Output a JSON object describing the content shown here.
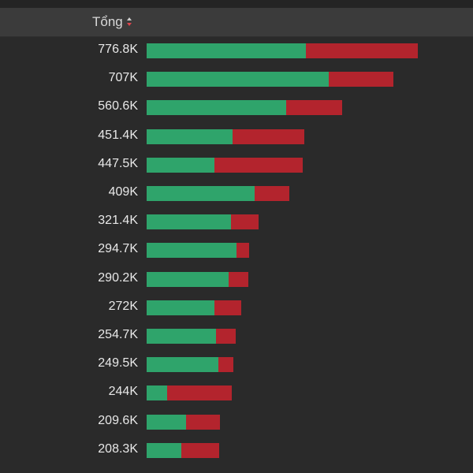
{
  "header": {
    "label": "Tổng",
    "sort_icon": "sort-descending-icon"
  },
  "colors": {
    "buy": "#2fa46b",
    "sell": "#b3242d",
    "background": "#2a2a2a",
    "header_bg": "#3b3b3b"
  },
  "rows": [
    {
      "total": "776.8K",
      "green": 0.587,
      "red": 0.413
    },
    {
      "total": "707K",
      "green": 0.738,
      "red": 0.262
    },
    {
      "total": "560.6K",
      "green": 0.712,
      "red": 0.288
    },
    {
      "total": "451.4K",
      "green": 0.544,
      "red": 0.456
    },
    {
      "total": "447.5K",
      "green": 0.432,
      "red": 0.568
    },
    {
      "total": "409K",
      "green": 0.754,
      "red": 0.246
    },
    {
      "total": "321.4K",
      "green": 0.754,
      "red": 0.246
    },
    {
      "total": "294.7K",
      "green": 0.871,
      "red": 0.129
    },
    {
      "total": "290.2K",
      "green": 0.811,
      "red": 0.189
    },
    {
      "total": "272K",
      "green": 0.712,
      "red": 0.288
    },
    {
      "total": "254.7K",
      "green": 0.784,
      "red": 0.216
    },
    {
      "total": "249.5K",
      "green": 0.824,
      "red": 0.176
    },
    {
      "total": "244K",
      "green": 0.238,
      "red": 0.762
    },
    {
      "total": "209.6K",
      "green": 0.538,
      "red": 0.462
    },
    {
      "total": "208.3K",
      "green": 0.475,
      "red": 0.525
    }
  ],
  "scale_max": 776.8
}
